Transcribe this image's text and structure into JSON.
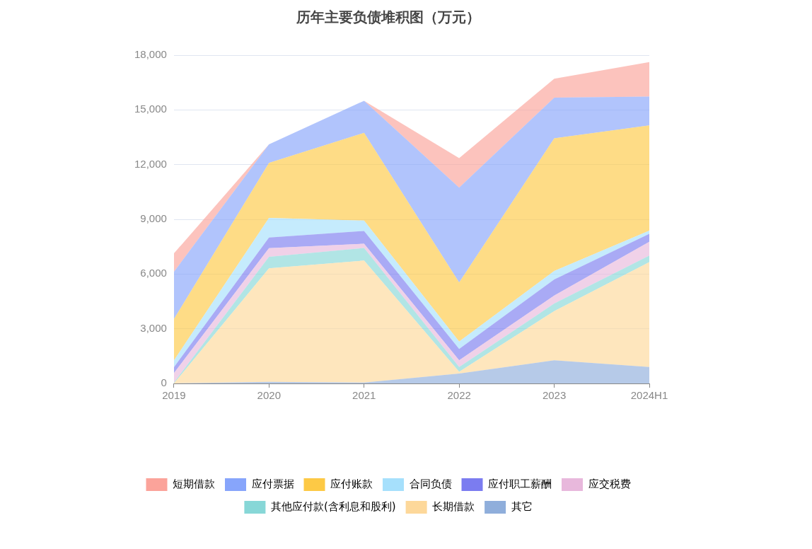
{
  "chart_data": {
    "type": "area",
    "title": "历年主要负债堆积图（万元）",
    "stacked": true,
    "categories": [
      "2019",
      "2020",
      "2021",
      "2022",
      "2023",
      "2024H1"
    ],
    "ylim": [
      0,
      18000
    ],
    "yticks": [
      0,
      {
        "value": 3000,
        "label": "3,000"
      },
      {
        "value": 6000,
        "label": "6,000"
      },
      {
        "value": 9000,
        "label": "9,000"
      },
      {
        "value": 12000,
        "label": "12,000"
      },
      {
        "value": 15000,
        "label": "15,000"
      },
      {
        "value": 18000,
        "label": "18,000"
      }
    ],
    "grid": "y",
    "legend": "bottom",
    "series": [
      {
        "name": "其它",
        "color": "#8faedb",
        "values": [
          0,
          90,
          50,
          540,
          1270,
          900
        ]
      },
      {
        "name": "长期借款",
        "color": "#fdd89a",
        "values": [
          0,
          6220,
          6690,
          100,
          2700,
          5750
        ]
      },
      {
        "name": "其他应付款(含利息和股利)",
        "color": "#87d7d7",
        "values": [
          50,
          630,
          690,
          260,
          410,
          360
        ]
      },
      {
        "name": "应交税费",
        "color": "#e8b8dc",
        "values": [
          520,
          480,
          230,
          370,
          440,
          760
        ]
      },
      {
        "name": "应付职工薪酬",
        "color": "#7b7cf0",
        "values": [
          320,
          580,
          700,
          620,
          880,
          430
        ]
      },
      {
        "name": "合同负债",
        "color": "#a6e0fc",
        "values": [
          370,
          1080,
          570,
          410,
          470,
          180
        ]
      },
      {
        "name": "应付账款",
        "color": "#fdc945",
        "values": [
          2270,
          3010,
          4810,
          3240,
          7270,
          5770
        ]
      },
      {
        "name": "应付票据",
        "color": "#87a5fb",
        "values": [
          2590,
          1020,
          1760,
          5200,
          2230,
          1580
        ]
      },
      {
        "name": "短期借款",
        "color": "#fba39a",
        "values": [
          1010,
          0,
          0,
          1620,
          1040,
          1890
        ]
      }
    ]
  }
}
